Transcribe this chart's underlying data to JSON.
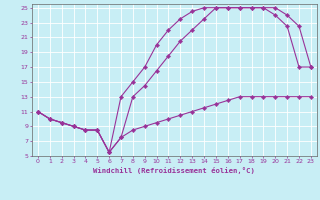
{
  "xlabel": "Windchill (Refroidissement éolien,°C)",
  "bg_color": "#c8eef5",
  "line_color": "#993399",
  "grid_color": "#ffffff",
  "xlim": [
    -0.5,
    23.5
  ],
  "ylim": [
    5,
    25.5
  ],
  "xticks": [
    0,
    1,
    2,
    3,
    4,
    5,
    6,
    7,
    8,
    9,
    10,
    11,
    12,
    13,
    14,
    15,
    16,
    17,
    18,
    19,
    20,
    21,
    22,
    23
  ],
  "yticks": [
    5,
    7,
    9,
    11,
    13,
    15,
    17,
    19,
    21,
    23,
    25
  ],
  "curve1_x": [
    0,
    1,
    2,
    3,
    4,
    5,
    6,
    7,
    8,
    9,
    10,
    11,
    12,
    13,
    14,
    15,
    16,
    17,
    18,
    19,
    20,
    21,
    22,
    23
  ],
  "curve1_y": [
    11,
    10,
    9.5,
    9,
    8.5,
    8.5,
    5.5,
    7.5,
    8.5,
    9,
    9.5,
    10,
    10.5,
    11,
    11.5,
    12,
    12.5,
    13,
    13,
    13,
    13,
    13,
    13,
    13
  ],
  "curve2_x": [
    0,
    1,
    2,
    3,
    4,
    5,
    6,
    7,
    8,
    9,
    10,
    11,
    12,
    13,
    14,
    15,
    16,
    17,
    18,
    19,
    20,
    21,
    22,
    23
  ],
  "curve2_y": [
    11,
    10,
    9.5,
    9,
    8.5,
    8.5,
    5.5,
    7.5,
    13,
    14.5,
    16.5,
    18.5,
    20.5,
    22,
    23.5,
    25,
    25,
    25,
    25,
    25,
    25,
    24,
    22.5,
    17
  ],
  "curve3_x": [
    0,
    1,
    2,
    3,
    4,
    5,
    6,
    7,
    8,
    9,
    10,
    11,
    12,
    13,
    14,
    15,
    16,
    17,
    18,
    19,
    20,
    21,
    22,
    23
  ],
  "curve3_y": [
    11,
    10,
    9.5,
    9,
    8.5,
    8.5,
    5.5,
    13,
    15,
    17,
    20,
    22,
    23.5,
    24.5,
    25,
    25,
    25,
    25,
    25,
    25,
    24,
    22.5,
    17,
    17
  ]
}
